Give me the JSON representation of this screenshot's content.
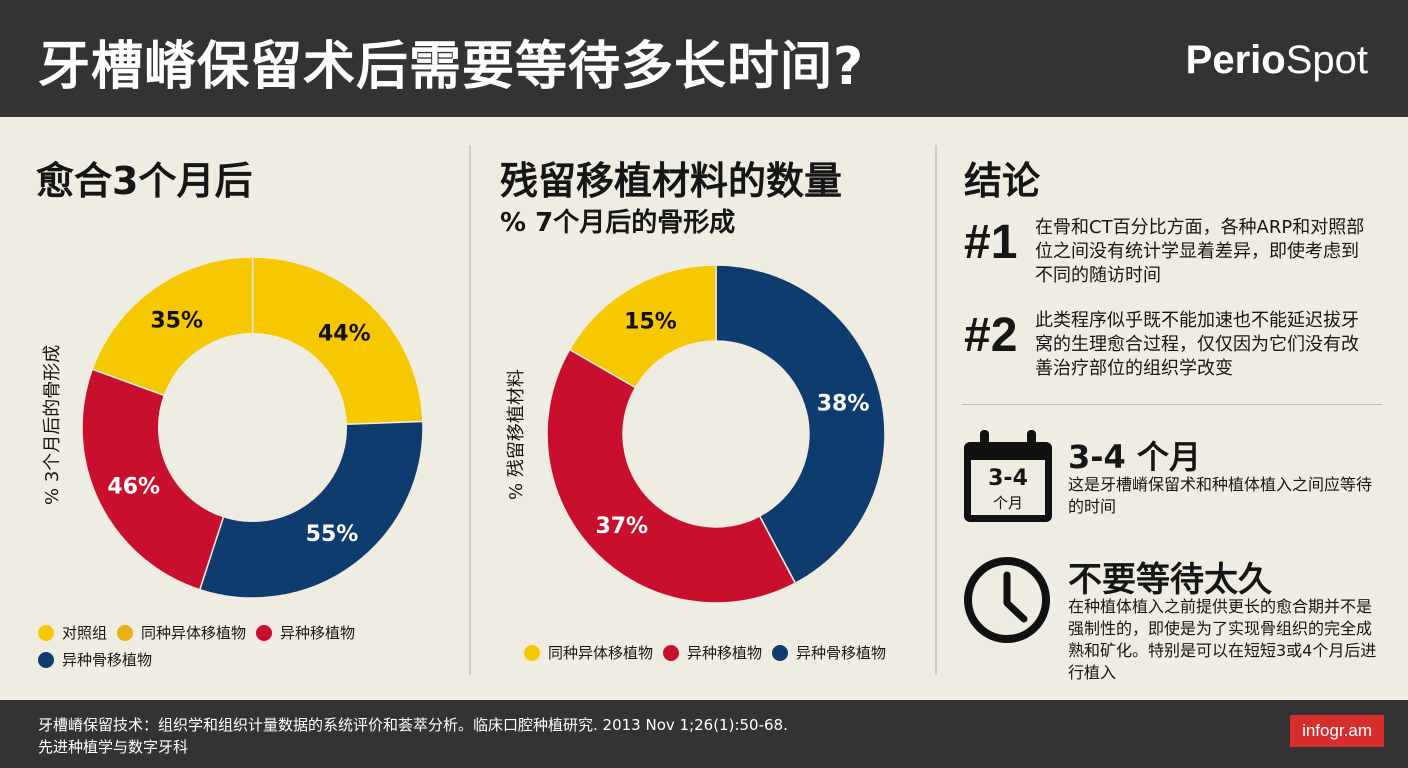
{
  "header": {
    "title": "牙槽嵴保留术后需要等待多长时间?",
    "brand_a": "Perio",
    "brand_b": "Spot"
  },
  "colors": {
    "yellow": "#f5c800",
    "gold": "#e8b010",
    "red": "#c8102e",
    "navy": "#0f3c6e"
  },
  "chart_data": [
    {
      "type": "pie",
      "donut": true,
      "title": "愈合3个月后",
      "ylabel": "% 3个月后的骨形成",
      "slices": [
        {
          "label": "44%",
          "value": 44,
          "color": "#f5c800"
        },
        {
          "label": "55%",
          "value": 55,
          "color": "#0f3c6e"
        },
        {
          "label": "46%",
          "value": 46,
          "color": "#c8102e"
        },
        {
          "label": "35%",
          "value": 35,
          "color": "#f5c800"
        }
      ],
      "legend": [
        {
          "name": "对照组",
          "color": "#f5c800"
        },
        {
          "name": "同种异体移植物",
          "color": "#e8b010"
        },
        {
          "name": "异种移植物",
          "color": "#c8102e"
        },
        {
          "name": "异种骨移植物",
          "color": "#0f3c6e"
        }
      ],
      "legend_position": "bottom"
    },
    {
      "type": "pie",
      "donut": true,
      "title": "残留移植材料的数量",
      "subtitle": "% 7个月后的骨形成",
      "ylabel": "% 残留移植材料",
      "slices": [
        {
          "label": "38%",
          "value": 38,
          "color": "#0f3c6e"
        },
        {
          "label": "37%",
          "value": 37,
          "color": "#c8102e"
        },
        {
          "label": "15%",
          "value": 15,
          "color": "#f5c800"
        }
      ],
      "legend": [
        {
          "name": "同种异体移植物",
          "color": "#f5c800"
        },
        {
          "name": "异种移植物",
          "color": "#c8102e"
        },
        {
          "name": "异种骨移植物",
          "color": "#0f3c6e"
        }
      ],
      "legend_position": "bottom"
    }
  ],
  "conclusion": {
    "title": "结论",
    "items": [
      {
        "num": "#1",
        "text": "在骨和CT百分比方面，各种ARP和对照部位之间没有统计学显着差异，即使考虑到不同的随访时间"
      },
      {
        "num": "#2",
        "text": "此类程序似乎既不能加速也不能延迟拔牙窝的生理愈合过程，仅仅因为它们没有改善治疗部位的组织学改变"
      }
    ],
    "calendar": {
      "icon": "calendar-icon",
      "icon_top": "3-4",
      "icon_bottom": "个月",
      "title": "3-4 个月",
      "text": "这是牙槽嵴保留术和种植体植入之间应等待的时间"
    },
    "clock": {
      "icon": "clock-icon",
      "title": "不要等待太久",
      "text": "在种植体植入之前提供更长的愈合期并不是强制性的，即使是为了实现骨组织的完全成熟和矿化。特别是可以在短短3或4个月后进行植入"
    }
  },
  "footer": {
    "line1": "牙槽嵴保留技术：组织学和组织计量数据的系统评价和荟萃分析。临床口腔种植研究. 2013 Nov 1;26(1):50-68.",
    "line2": "先进种植学与数字牙科",
    "badge": "infogr.am"
  }
}
